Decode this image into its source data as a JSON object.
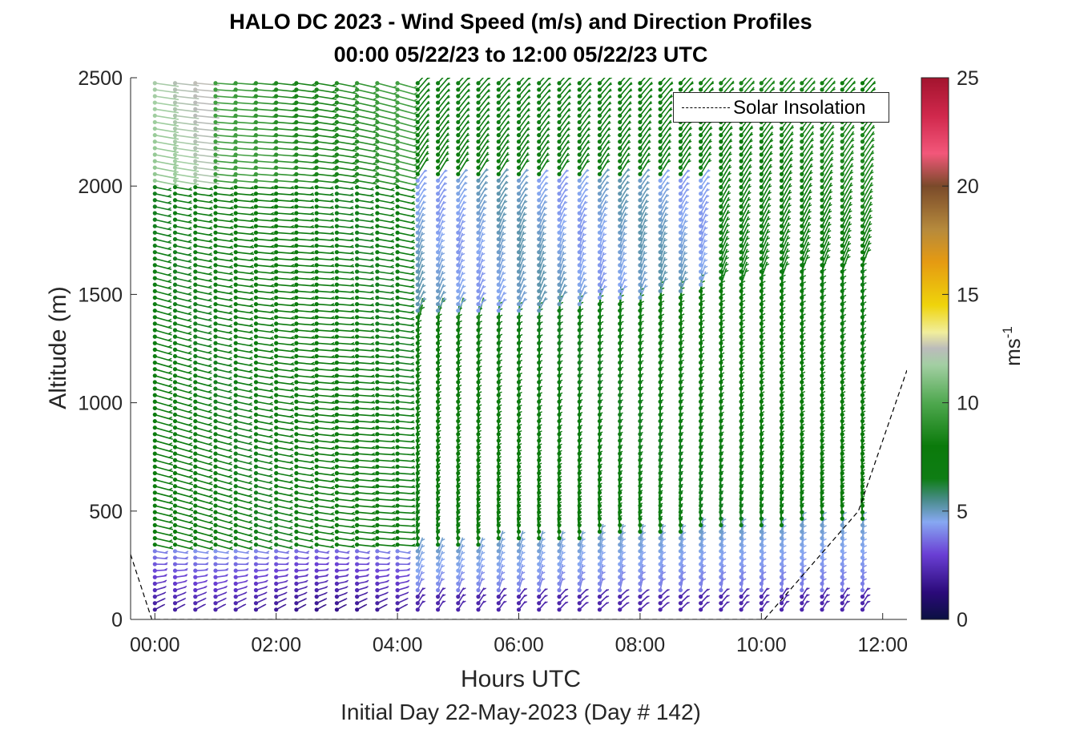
{
  "chart_data": {
    "type": "quiver",
    "title": "HALO DC 2023 - Wind Speed (m/s) and Direction Profiles",
    "subtitle": "00:00 05/22/23 to 12:00 05/22/23  UTC",
    "xlabel": "Hours UTC",
    "x_sublabel": "Initial Day 22-May-2023 (Day # 142)",
    "ylabel": "Altitude (m)",
    "xlim": [
      -0.4,
      12.4
    ],
    "ylim": [
      0,
      2500
    ],
    "x_ticks": [
      "00:00",
      "02:00",
      "04:00",
      "06:00",
      "08:00",
      "10:00",
      "12:00"
    ],
    "y_ticks": [
      "0",
      "500",
      "1000",
      "1500",
      "2000",
      "2500"
    ],
    "colorbar": {
      "label_base": "ms",
      "label_exp": "-1",
      "range": [
        0,
        25
      ],
      "ticks": [
        "0",
        "5",
        "10",
        "15",
        "20",
        "25"
      ]
    },
    "legend": {
      "entries": [
        "Solar Insolation"
      ],
      "placement": "top-right"
    },
    "profile_times_h": [
      0.0,
      0.333,
      0.667,
      1.0,
      1.333,
      1.667,
      2.0,
      2.333,
      2.667,
      3.0,
      3.333,
      3.667,
      4.0,
      4.333,
      4.667,
      5.0,
      5.333,
      5.667,
      6.0,
      6.333,
      6.667,
      7.0,
      7.333,
      7.667,
      8.0,
      8.333,
      8.667,
      9.0,
      9.333,
      9.667,
      10.0,
      10.333,
      10.667,
      11.0,
      11.333,
      11.667
    ],
    "altitude_step_m": 30,
    "altitude_range_m": [
      45,
      2490
    ],
    "wind_regimes": [
      {
        "hours": [
          0,
          4
        ],
        "altitude_m": [
          0,
          300
        ],
        "speed_ms": 2.5,
        "direction": "from north-northwest, veering with height"
      },
      {
        "hours": [
          0,
          4
        ],
        "altitude_m": [
          300,
          2500
        ],
        "speed_ms": 8,
        "direction": "from southwest, near-vertical barbs"
      },
      {
        "hours": [
          4,
          12
        ],
        "altitude_m": [
          0,
          450
        ],
        "speed_ms": 4,
        "direction": "easterly component, stable layer"
      },
      {
        "hours": [
          4,
          12
        ],
        "altitude_m": [
          450,
          1500
        ],
        "speed_ms": 8,
        "direction": "from the west, strong westerly"
      },
      {
        "hours": [
          4.3,
          9
        ],
        "altitude_m": [
          1400,
          2000
        ],
        "speed_ms": 5,
        "direction": "weak southwesterly"
      },
      {
        "hours": [
          9,
          12
        ],
        "altitude_m": [
          1500,
          2500
        ],
        "speed_ms": 8,
        "direction": "west-southwesterly"
      }
    ],
    "solar_insolation": {
      "style": "black dashed",
      "points": [
        [
          -0.4,
          300
        ],
        [
          -0.05,
          0
        ],
        [
          10.05,
          0
        ],
        [
          11.6,
          500
        ],
        [
          12.4,
          1150
        ]
      ]
    }
  }
}
